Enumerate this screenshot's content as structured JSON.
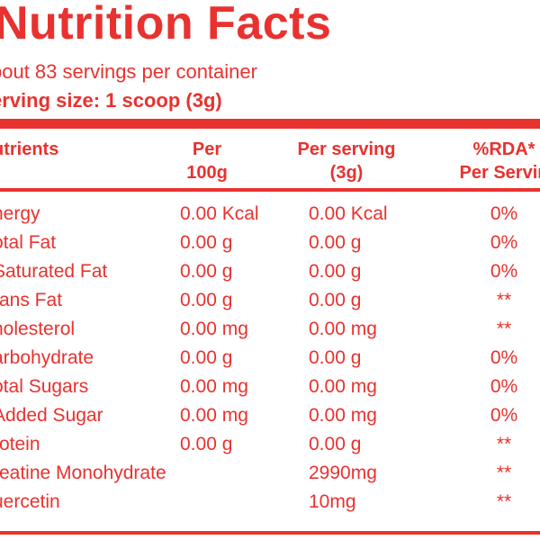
{
  "label": {
    "title": "Nutrition Facts",
    "servings_per_container": "bout 83 servings per container",
    "serving_size": "erving size: 1 scoop (3g)"
  },
  "headers": {
    "nutrients": "utrients",
    "per100_line1": "Per",
    "per100_line2": "100g",
    "perserving_line1": "Per serving",
    "perserving_line2": "(3g)",
    "rda_line1": "%RDA*",
    "rda_line2": "Per Servin"
  },
  "rows": [
    {
      "name": "nergy",
      "per100": "0.00 Kcal",
      "perserving": "0.00 Kcal",
      "rda": "0%"
    },
    {
      "name": "otal Fat",
      "per100": "0.00 g",
      "perserving": "0.00 g",
      "rda": "0%"
    },
    {
      "name": " Saturated Fat",
      "per100": "0.00 g",
      "perserving": "0.00 g",
      "rda": "0%"
    },
    {
      "name": "rans Fat",
      "per100": "0.00 g",
      "perserving": "0.00 g",
      "rda": "**"
    },
    {
      "name": "holesterol",
      "per100": "0.00 mg",
      "perserving": "0.00 mg",
      "rda": "**"
    },
    {
      "name": "arbohydrate",
      "per100": "0.00 g",
      "perserving": "0.00 g",
      "rda": "0%"
    },
    {
      "name": "otal Sugars",
      "per100": "0.00 mg",
      "perserving": "0.00 mg",
      "rda": "0%"
    },
    {
      "name": " Added Sugar",
      "per100": "0.00 mg",
      "perserving": "0.00 mg",
      "rda": "0%"
    },
    {
      "name": "rotein",
      "per100": "0.00 g",
      "perserving": "0.00 g",
      "rda": "**"
    },
    {
      "name": "reatine Monohydrate",
      "per100": "",
      "perserving": "2990mg",
      "rda": "**"
    },
    {
      "name": "uercetin",
      "per100": "",
      "perserving": "10mg",
      "rda": "**"
    }
  ],
  "colors": {
    "accent": "#e8322f",
    "background": "#ffffff"
  }
}
